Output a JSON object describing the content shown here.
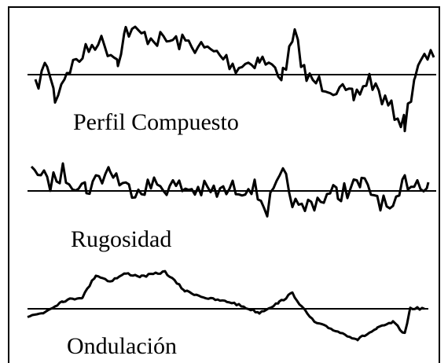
{
  "profiles": [
    {
      "label": "Perfil Compuesto"
    },
    {
      "label": "Rugosidad"
    },
    {
      "label": "Ondulación"
    }
  ]
}
